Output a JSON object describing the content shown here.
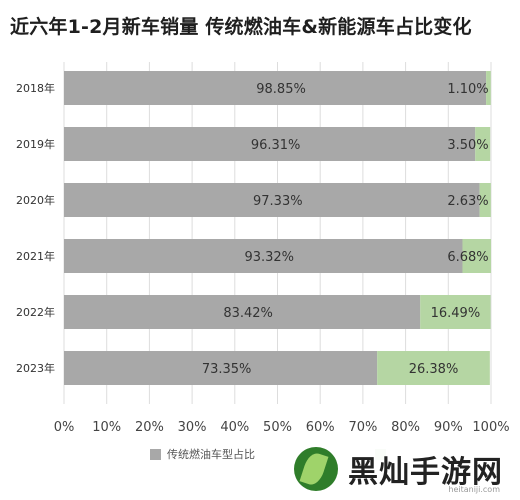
{
  "title": "近六年1-2月新车销量 传统燃油车&新能源车占比变化",
  "colors": {
    "fuel": "#a8a8a8",
    "ev": "#b5d6a3",
    "grid": "#dddddd",
    "text": "#333333"
  },
  "chart_data": {
    "type": "bar",
    "orientation": "horizontal",
    "stacked": true,
    "categories": [
      "2018年",
      "2019年",
      "2020年",
      "2021年",
      "2022年",
      "2023年"
    ],
    "series": [
      {
        "name": "传统燃油车型占比",
        "values": [
          98.85,
          96.31,
          97.33,
          93.32,
          83.42,
          73.35
        ],
        "labels": [
          "98.85%",
          "96.31%",
          "97.33%",
          "93.32%",
          "83.42%",
          "73.35%"
        ]
      },
      {
        "name": "",
        "values": [
          1.1,
          3.5,
          2.63,
          6.68,
          16.49,
          26.38
        ],
        "labels": [
          "1.10%",
          "3.50%",
          "2.63%",
          "6.68%",
          "16.49%",
          "26.38%"
        ]
      }
    ],
    "xlim": [
      0,
      100
    ],
    "xticks": [
      "0%",
      "10%",
      "20%",
      "30%",
      "40%",
      "50%",
      "60%",
      "70%",
      "80%",
      "90%",
      "100%"
    ],
    "grid": true,
    "legend_position": "bottom"
  },
  "legend": {
    "fuel_label": "传统燃油车型占比"
  },
  "watermark": {
    "text": "黑灿手游网",
    "url": "heitaniji.com"
  }
}
